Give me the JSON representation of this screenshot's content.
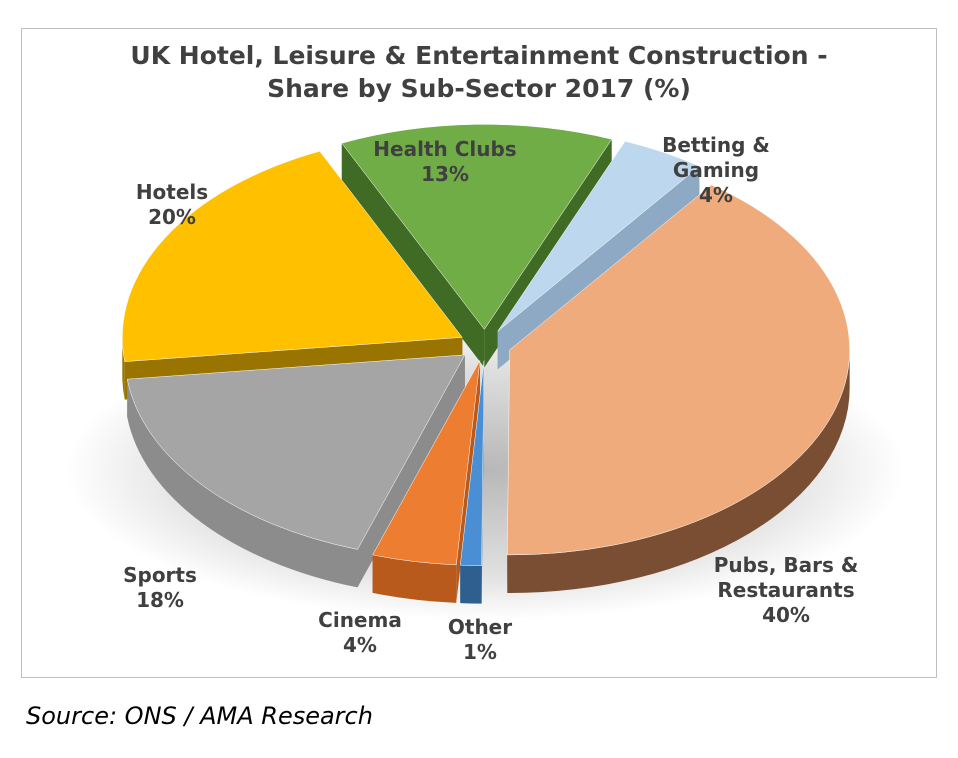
{
  "chart_data": {
    "type": "pie",
    "title": "UK Hotel, Leisure & Entertainment Construction - Share by Sub-Sector 2017 (%)",
    "title_lines": [
      "UK Hotel, Leisure & Entertainment Construction -",
      "Share by Sub-Sector 2017 (%)"
    ],
    "unit": "%",
    "slices": [
      {
        "name": "Betting & Gaming",
        "label_lines": [
          "Betting &",
          "Gaming"
        ],
        "value": 4,
        "value_label": "4%",
        "color": "#bdd7ee",
        "side_color": "#8ea9c4"
      },
      {
        "name": "Pubs, Bars & Restaurants",
        "label_lines": [
          "Pubs, Bars &",
          "Restaurants"
        ],
        "value": 40,
        "value_label": "40%",
        "color": "#f0ab7c",
        "side_color": "#7a4e32"
      },
      {
        "name": "Other",
        "label_lines": [
          "Other"
        ],
        "value": 1,
        "value_label": "1%",
        "color": "#4a8fd4",
        "side_color": "#2f5f8f"
      },
      {
        "name": "Cinema",
        "label_lines": [
          "Cinema"
        ],
        "value": 4,
        "value_label": "4%",
        "color": "#ed7d31",
        "side_color": "#b85a1c"
      },
      {
        "name": "Sports",
        "label_lines": [
          "Sports"
        ],
        "value": 18,
        "value_label": "18%",
        "color": "#a5a5a5",
        "side_color": "#8c8c8c"
      },
      {
        "name": "Hotels",
        "label_lines": [
          "Hotels"
        ],
        "value": 20,
        "value_label": "20%",
        "color": "#ffc000",
        "side_color": "#9a7400"
      },
      {
        "name": "Health Clubs",
        "label_lines": [
          "Health Clubs"
        ],
        "value": 13,
        "value_label": "13%",
        "color": "#70ad47",
        "side_color": "#3f6b24"
      }
    ],
    "exploded": true,
    "style": "3d-perspective",
    "legend": "none"
  },
  "source": "Source: ONS / AMA Research"
}
